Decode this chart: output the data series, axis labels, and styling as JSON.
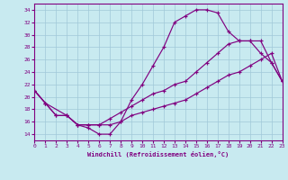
{
  "bg_color": "#c8eaf0",
  "line_color": "#800080",
  "grid_color": "#a0c8d8",
  "xlabel": "Windchill (Refroidissement éolien,°C)",
  "xlim": [
    0,
    23
  ],
  "ylim": [
    13,
    35
  ],
  "yticks": [
    14,
    16,
    18,
    20,
    22,
    24,
    26,
    28,
    30,
    32,
    34
  ],
  "xticks": [
    0,
    1,
    2,
    3,
    4,
    5,
    6,
    7,
    8,
    9,
    10,
    11,
    12,
    13,
    14,
    15,
    16,
    17,
    18,
    19,
    20,
    21,
    22,
    23
  ],
  "curve1_x": [
    0,
    1,
    2,
    3,
    4,
    5,
    6,
    7,
    8,
    9,
    10,
    11,
    12,
    13,
    14,
    15,
    16,
    17,
    18,
    19,
    20,
    21,
    22,
    23
  ],
  "curve1_y": [
    21,
    19,
    17,
    17,
    15.5,
    15,
    14,
    14,
    16,
    19.5,
    22,
    25,
    28,
    32,
    33,
    34,
    34,
    33.5,
    30.5,
    29,
    29,
    27,
    25.5,
    22.5
  ],
  "curve2_x": [
    0,
    1,
    3,
    4,
    5,
    6,
    7,
    8,
    9,
    10,
    11,
    12,
    13,
    14,
    15,
    16,
    17,
    18,
    19,
    20,
    21,
    22,
    23
  ],
  "curve2_y": [
    21,
    19,
    17,
    15.5,
    15.5,
    15.5,
    16.5,
    17.5,
    18.5,
    19.5,
    20.5,
    21,
    22,
    22.5,
    24,
    25.5,
    27,
    28.5,
    29,
    29,
    29,
    25.5,
    22.5
  ],
  "curve3_x": [
    0,
    1,
    2,
    3,
    4,
    5,
    6,
    7,
    8,
    9,
    10,
    11,
    12,
    13,
    14,
    15,
    16,
    17,
    18,
    19,
    20,
    21,
    22,
    23
  ],
  "curve3_y": [
    21,
    19,
    17,
    17,
    15.5,
    15.5,
    15.5,
    15.5,
    16,
    17,
    17.5,
    18,
    18.5,
    19,
    19.5,
    20.5,
    21.5,
    22.5,
    23.5,
    24,
    25,
    26,
    27,
    22.5
  ]
}
